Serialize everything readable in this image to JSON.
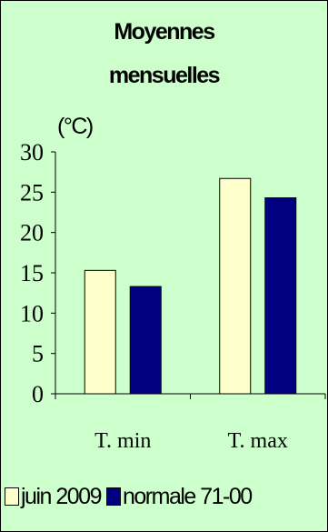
{
  "chart_data": {
    "type": "bar",
    "title_lines": [
      "Moyennes",
      "mensuelles"
    ],
    "unit_label": "(°C)",
    "categories": [
      "T. min",
      "T. max"
    ],
    "series": [
      {
        "name": "juin 2009",
        "values": [
          15.3,
          26.7
        ],
        "color": "#ffffcc"
      },
      {
        "name": "normale 71-00",
        "values": [
          13.3,
          24.3
        ],
        "color": "#000080"
      }
    ],
    "ylim": [
      0,
      30
    ],
    "yticks": [
      0,
      5,
      10,
      15,
      20,
      25,
      30
    ],
    "grid": false,
    "legend_position": "bottom",
    "background_color": "#ccffcc"
  }
}
